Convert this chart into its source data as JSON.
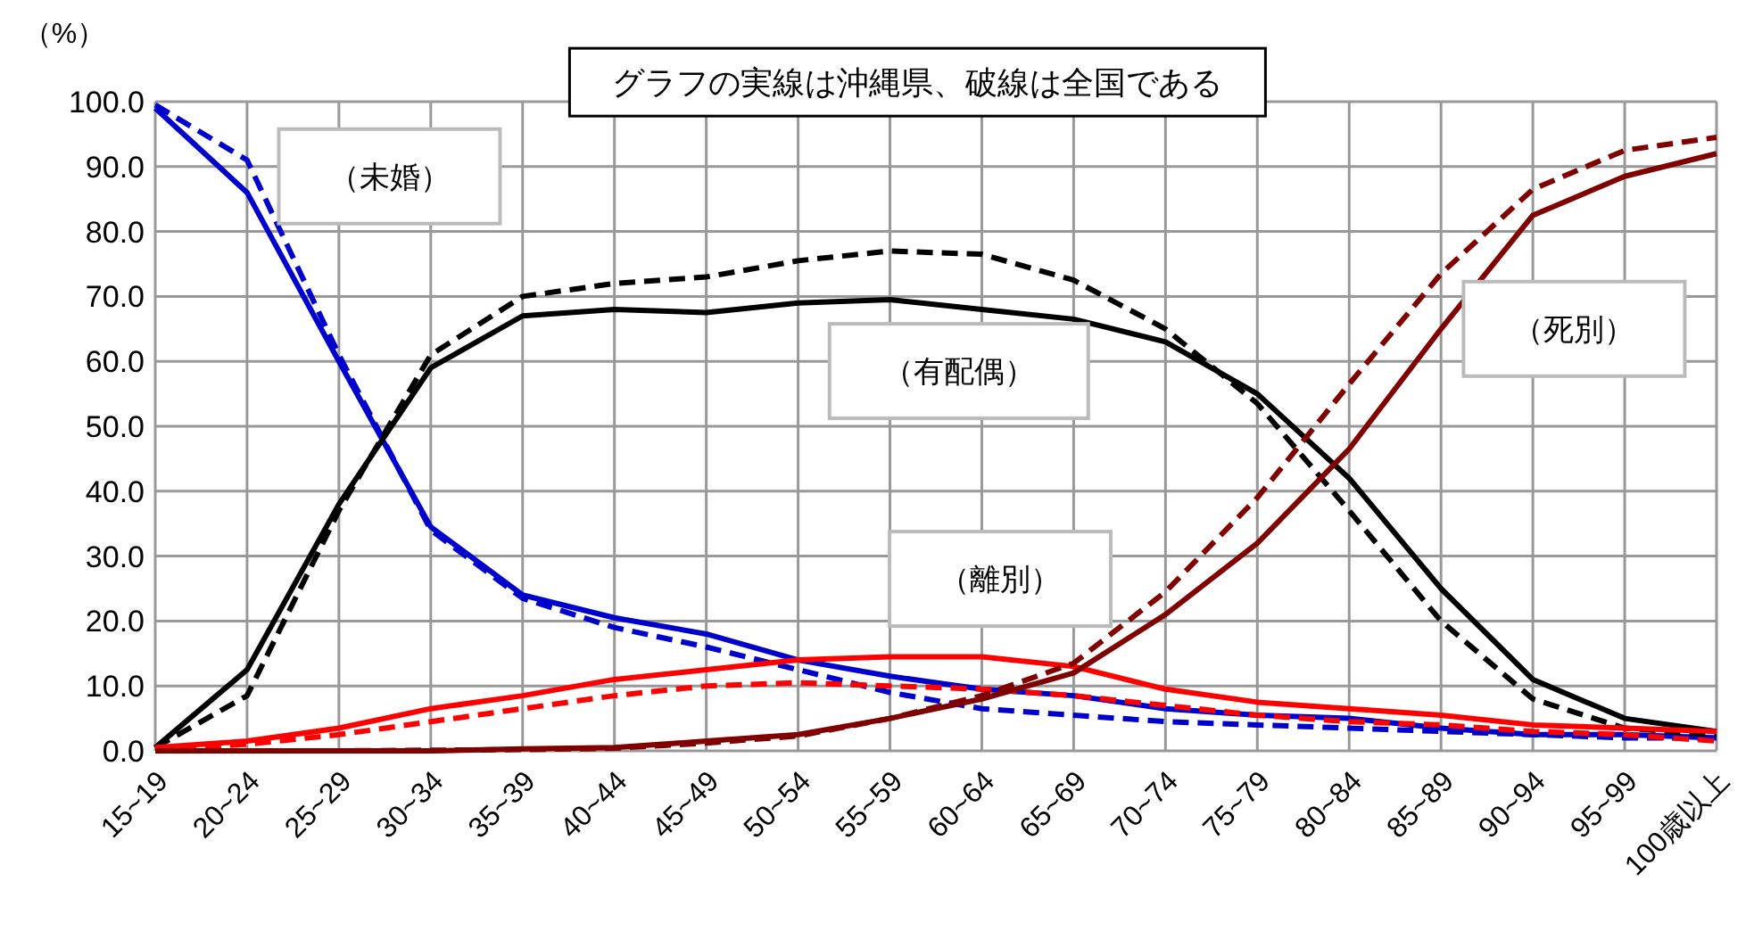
{
  "chart_data": {
    "type": "line",
    "ylabel": "（%）",
    "categories": [
      "15~19",
      "20~24",
      "25~29",
      "30~34",
      "35~39",
      "40~44",
      "45~49",
      "50~54",
      "55~59",
      "60~64",
      "65~69",
      "70~74",
      "75~79",
      "80~84",
      "85~89",
      "90~94",
      "95~99",
      "100歳以上"
    ],
    "series": [
      {
        "color": "#0000cc",
        "line_style": "solid",
        "values": [
          99.0,
          86.0,
          60.0,
          34.5,
          24.0,
          20.5,
          18.0,
          14.0,
          11.5,
          9.5,
          8.5,
          6.5,
          5.5,
          5.0,
          3.5,
          2.5,
          2.5,
          2.0
        ]
      },
      {
        "color": "#0000cc",
        "line_style": "dashed",
        "values": [
          99.5,
          91.0,
          61.0,
          34.0,
          23.5,
          19.0,
          16.0,
          12.5,
          9.0,
          6.5,
          5.5,
          4.5,
          4.0,
          3.5,
          3.0,
          2.5,
          2.0,
          2.0
        ]
      },
      {
        "color": "#000000",
        "line_style": "solid",
        "values": [
          0.5,
          12.5,
          38.0,
          59.0,
          67.0,
          68.0,
          67.5,
          69.0,
          69.5,
          68.0,
          66.5,
          63.0,
          55.0,
          42.0,
          25.0,
          11.0,
          5.0,
          3.0
        ]
      },
      {
        "color": "#000000",
        "line_style": "dashed",
        "values": [
          0.5,
          8.5,
          37.0,
          61.0,
          70.0,
          72.0,
          73.0,
          75.5,
          77.0,
          76.5,
          72.5,
          65.0,
          53.5,
          37.0,
          20.0,
          8.0,
          3.5,
          2.5
        ]
      },
      {
        "color": "#ff0000",
        "line_style": "solid",
        "values": [
          0.5,
          1.5,
          3.5,
          6.5,
          8.5,
          11.0,
          12.5,
          14.0,
          14.5,
          14.5,
          13.0,
          9.5,
          7.5,
          6.5,
          5.5,
          4.0,
          3.5,
          3.0
        ]
      },
      {
        "color": "#ff0000",
        "line_style": "dashed",
        "values": [
          0.2,
          1.0,
          2.5,
          4.5,
          6.5,
          8.5,
          10.0,
          10.5,
          10.0,
          9.5,
          8.5,
          7.0,
          5.5,
          4.5,
          4.0,
          3.0,
          2.5,
          1.5
        ]
      },
      {
        "color": "#800000",
        "line_style": "solid",
        "values": [
          0.0,
          0.0,
          0.0,
          0.0,
          0.3,
          0.5,
          1.5,
          2.5,
          5.0,
          8.0,
          12.0,
          21.0,
          32.0,
          46.5,
          65.0,
          82.5,
          88.5,
          92.0
        ]
      },
      {
        "color": "#800000",
        "line_style": "dashed",
        "values": [
          0.0,
          0.0,
          0.0,
          0.1,
          0.2,
          0.4,
          1.2,
          2.3,
          5.0,
          8.5,
          13.5,
          24.5,
          39.0,
          56.5,
          73.5,
          86.5,
          92.5,
          94.5
        ]
      }
    ],
    "ylim": [
      0,
      100
    ],
    "yticks": [
      {
        "value": 0,
        "label": "0.0"
      },
      {
        "value": 10,
        "label": "10.0"
      },
      {
        "value": 20,
        "label": "20.0"
      },
      {
        "value": 30,
        "label": "30.0"
      },
      {
        "value": 40,
        "label": "40.0"
      },
      {
        "value": 50,
        "label": "50.0"
      },
      {
        "value": 60,
        "label": "60.0"
      },
      {
        "value": 70,
        "label": "70.0"
      },
      {
        "value": 80,
        "label": "80.0"
      },
      {
        "value": 90,
        "label": "90.0"
      },
      {
        "value": 100,
        "label": "100.0"
      }
    ],
    "grid": true,
    "annotations": [
      "グラフの実線は沖縄県、破線は全国である",
      "（未婚）",
      "（有配偶）",
      "（離別）",
      "（死別）"
    ]
  }
}
